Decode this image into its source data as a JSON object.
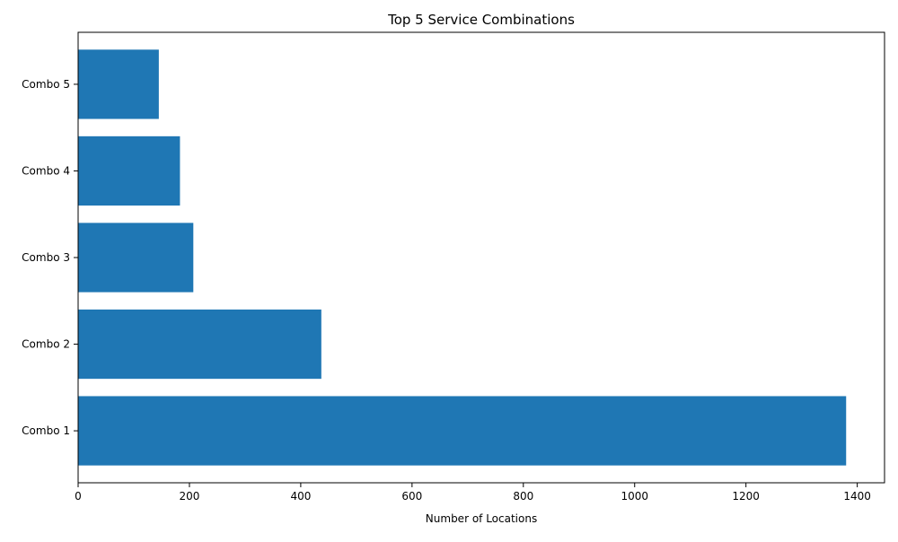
{
  "chart_data": {
    "type": "bar",
    "orientation": "horizontal",
    "title": "Top 5 Service Combinations",
    "xlabel": "Number of Locations",
    "ylabel": "",
    "categories": [
      "Combo 1",
      "Combo 2",
      "Combo 3",
      "Combo 4",
      "Combo 5"
    ],
    "values": [
      1380,
      437,
      207,
      183,
      145
    ],
    "xlim": [
      0,
      1449
    ],
    "xticks": [
      0,
      200,
      400,
      600,
      800,
      1000,
      1200,
      1400
    ],
    "grid": false,
    "legend": "none",
    "bar_color": "#1f77b4"
  }
}
